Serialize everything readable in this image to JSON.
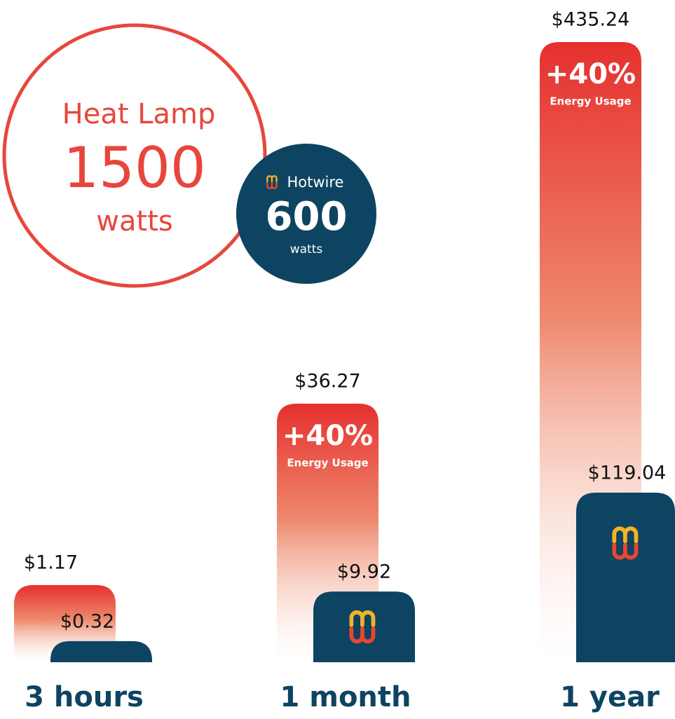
{
  "chart_data": {
    "type": "bar",
    "comparison": {
      "heat": {
        "name": "Heat Lamp",
        "power": "1500",
        "unit": "watts"
      },
      "hotwire": {
        "name": "Hotwire",
        "power": "600",
        "unit": "watts"
      }
    },
    "categories": [
      "3 hours",
      "1 month",
      "1 year"
    ],
    "series": [
      {
        "name": "Heat Lamp",
        "color": "#e5302e",
        "values": [
          1.17,
          36.27,
          435.24
        ],
        "value_labels": [
          "$1.17",
          "$36.27",
          "$435.24"
        ]
      },
      {
        "name": "Hotwire",
        "color": "#0d4462",
        "values": [
          0.32,
          9.92,
          119.04
        ],
        "value_labels": [
          "$0.32",
          "$9.92",
          "$119.04"
        ]
      }
    ],
    "badges": [
      null,
      "+40%",
      "+40%"
    ],
    "badge_note": "Energy Usage"
  }
}
